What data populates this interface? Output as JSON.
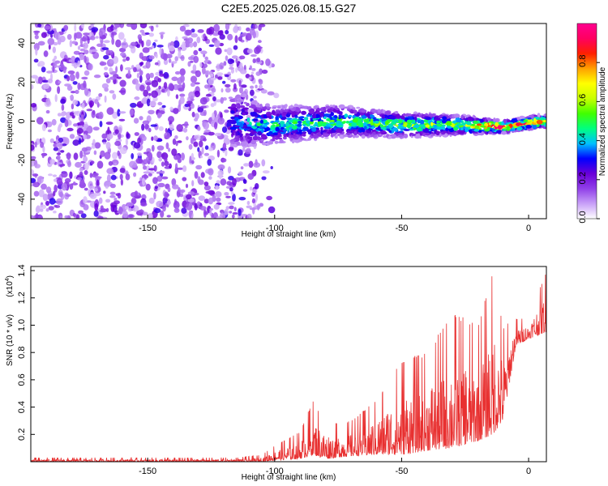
{
  "title": "C2E5.2025.026.08.15.G27",
  "chart_data": [
    {
      "type": "heatmap",
      "title": "C2E5.2025.026.08.15.G27",
      "xlabel": "Height of straight line (km)",
      "ylabel": "Frequency (Hz)",
      "xlim": [
        -196,
        7
      ],
      "ylim": [
        -50,
        50
      ],
      "xticks": [
        -150,
        -100,
        -50,
        0
      ],
      "yticks": [
        -40,
        -20,
        0,
        20,
        40
      ],
      "colorbar": {
        "label": "Normalized spectral amplitude",
        "range": [
          0,
          1
        ],
        "ticks": [
          0.0,
          0.2,
          0.4,
          0.6,
          0.8
        ],
        "colormap": "rainbow",
        "colors": [
          "#ffffff",
          "#c8a0f8",
          "#9040e8",
          "#6a00d8",
          "#0000ff",
          "#00c0ff",
          "#00ff80",
          "#40ff00",
          "#c8ff00",
          "#ffff00",
          "#ffa000",
          "#ff2000",
          "#ff0060",
          "#ff0090"
        ]
      },
      "signal_band": [
        {
          "x": -118,
          "f_center": 0,
          "f_halfwidth": 8,
          "amp": 0.3
        },
        {
          "x": -100,
          "f_center": -2,
          "f_halfwidth": 6,
          "amp": 0.4
        },
        {
          "x": -75,
          "f_center": 0,
          "f_halfwidth": 5,
          "amp": 0.45
        },
        {
          "x": -50,
          "f_center": -2,
          "f_halfwidth": 4,
          "amp": 0.5
        },
        {
          "x": -25,
          "f_center": -2,
          "f_halfwidth": 3,
          "amp": 0.6
        },
        {
          "x": -10,
          "f_center": -3,
          "f_halfwidth": 2,
          "amp": 0.9
        },
        {
          "x": 5,
          "f_center": 0,
          "f_halfwidth": 2,
          "amp": 0.8
        }
      ],
      "noise_region": {
        "x_start": -196,
        "x_end": -105,
        "amp": 0.3
      }
    },
    {
      "type": "line",
      "xlabel": "Height of straight line (km)",
      "ylabel": "SNR (10 * v/v)",
      "y_exponent_label": "(x10",
      "y_exponent": "4",
      "y_exponent_close": ")",
      "xlim": [
        -196,
        7
      ],
      "ylim": [
        0,
        1.43
      ],
      "xticks": [
        -150,
        -100,
        -50,
        0
      ],
      "yticks": [
        0.2,
        0.4,
        0.6,
        0.8,
        1.0,
        1.2,
        1.4
      ],
      "color": "#e83030",
      "envelope": [
        {
          "x": -196,
          "low": 0.0,
          "high": 0.03
        },
        {
          "x": -115,
          "low": 0.0,
          "high": 0.03
        },
        {
          "x": -105,
          "low": 0.0,
          "high": 0.05
        },
        {
          "x": -100,
          "low": 0.01,
          "high": 0.12
        },
        {
          "x": -90,
          "low": 0.02,
          "high": 0.22
        },
        {
          "x": -85,
          "low": 0.05,
          "high": 0.45
        },
        {
          "x": -80,
          "low": 0.02,
          "high": 0.3
        },
        {
          "x": -75,
          "low": 0.03,
          "high": 0.28
        },
        {
          "x": -70,
          "low": 0.04,
          "high": 0.3
        },
        {
          "x": -60,
          "low": 0.05,
          "high": 0.45
        },
        {
          "x": -50,
          "low": 0.05,
          "high": 0.75
        },
        {
          "x": -40,
          "low": 0.08,
          "high": 0.8
        },
        {
          "x": -30,
          "low": 0.1,
          "high": 1.1
        },
        {
          "x": -20,
          "low": 0.15,
          "high": 1.0
        },
        {
          "x": -14,
          "low": 0.2,
          "high": 1.4
        },
        {
          "x": -10,
          "low": 0.3,
          "high": 1.0
        },
        {
          "x": -5,
          "low": 0.85,
          "high": 1.05
        },
        {
          "x": 0,
          "low": 0.9,
          "high": 1.05
        },
        {
          "x": 7,
          "low": 0.95,
          "high": 1.4
        }
      ]
    }
  ]
}
